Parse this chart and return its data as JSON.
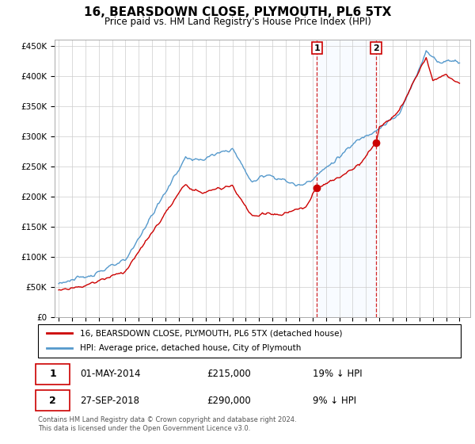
{
  "title": "16, BEARSDOWN CLOSE, PLYMOUTH, PL6 5TX",
  "subtitle": "Price paid vs. HM Land Registry's House Price Index (HPI)",
  "legend_label_red": "16, BEARSDOWN CLOSE, PLYMOUTH, PL6 5TX (detached house)",
  "legend_label_blue": "HPI: Average price, detached house, City of Plymouth",
  "transaction1_date": "01-MAY-2014",
  "transaction1_price": "£215,000",
  "transaction1_hpi": "19% ↓ HPI",
  "transaction2_date": "27-SEP-2018",
  "transaction2_price": "£290,000",
  "transaction2_hpi": "9% ↓ HPI",
  "footnote": "Contains HM Land Registry data © Crown copyright and database right 2024.\nThis data is licensed under the Open Government Licence v3.0.",
  "red_color": "#cc0000",
  "blue_color": "#5599cc",
  "highlight_color": "#ddeeff",
  "ylim": [
    0,
    460000
  ],
  "yticks": [
    0,
    50000,
    100000,
    150000,
    200000,
    250000,
    300000,
    350000,
    400000,
    450000
  ],
  "transaction1_x": 2014.33,
  "transaction1_y": 215000,
  "transaction2_x": 2018.75,
  "transaction2_y": 290000,
  "xmin": 1994.7,
  "xmax": 2025.8
}
